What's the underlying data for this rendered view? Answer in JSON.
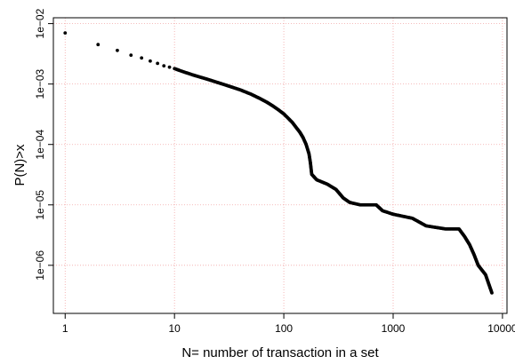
{
  "chart_data": {
    "type": "scatter",
    "title": "",
    "xlabel": "N= number of transaction in a set",
    "ylabel": "P(N)>x",
    "x_scale": "log",
    "y_scale": "log",
    "xlim": [
      0.78,
      11000
    ],
    "ylim": [
      1.6e-07,
      0.0125
    ],
    "x_ticks": [
      1,
      10,
      100,
      1000,
      10000
    ],
    "x_tick_labels": [
      "1",
      "10",
      "100",
      "1000",
      "10000"
    ],
    "y_ticks": [
      1e-06,
      1e-05,
      0.0001,
      0.001,
      0.01
    ],
    "y_tick_labels": [
      "1e−06",
      "1e−05",
      "1e−04",
      "1e−03",
      "1e−02"
    ],
    "grid": true,
    "colors": {
      "points": "#000000",
      "grid": "#f2a6a6",
      "frame": "#000000"
    },
    "series": [
      {
        "points": [
          [
            1,
            0.007
          ],
          [
            2,
            0.0045
          ],
          [
            3,
            0.0036
          ],
          [
            4,
            0.003
          ],
          [
            5,
            0.0027
          ],
          [
            6,
            0.0024
          ],
          [
            7,
            0.0022
          ],
          [
            8,
            0.002
          ],
          [
            9,
            0.0019
          ],
          [
            10,
            0.0018
          ],
          [
            12,
            0.0016
          ],
          [
            15,
            0.0014
          ],
          [
            20,
            0.0012
          ],
          [
            30,
            0.00095
          ],
          [
            40,
            0.0008
          ],
          [
            50,
            0.00068
          ],
          [
            60,
            0.00058
          ],
          [
            70,
            0.0005
          ],
          [
            80,
            0.00043
          ],
          [
            90,
            0.00037
          ],
          [
            100,
            0.00032
          ],
          [
            110,
            0.00027
          ],
          [
            120,
            0.00023
          ],
          [
            130,
            0.00019
          ],
          [
            140,
            0.00016
          ],
          [
            150,
            0.00013
          ],
          [
            160,
            0.0001
          ],
          [
            170,
            7e-05
          ],
          [
            175,
            5e-05
          ],
          [
            180,
            3.2e-05
          ],
          [
            200,
            2.6e-05
          ],
          [
            250,
            2.2e-05
          ],
          [
            300,
            1.8e-05
          ],
          [
            350,
            1.3e-05
          ],
          [
            400,
            1.1e-05
          ],
          [
            500,
            1e-05
          ],
          [
            700,
            1e-05
          ],
          [
            800,
            8e-06
          ],
          [
            1000,
            7e-06
          ],
          [
            1500,
            6e-06
          ],
          [
            2000,
            4.5e-06
          ],
          [
            3000,
            4e-06
          ],
          [
            4000,
            4e-06
          ],
          [
            4500,
            3e-06
          ],
          [
            5000,
            2.2e-06
          ],
          [
            5500,
            1.5e-06
          ],
          [
            6000,
            1e-06
          ],
          [
            7000,
            7e-07
          ],
          [
            8000,
            3.5e-07
          ]
        ]
      }
    ]
  }
}
